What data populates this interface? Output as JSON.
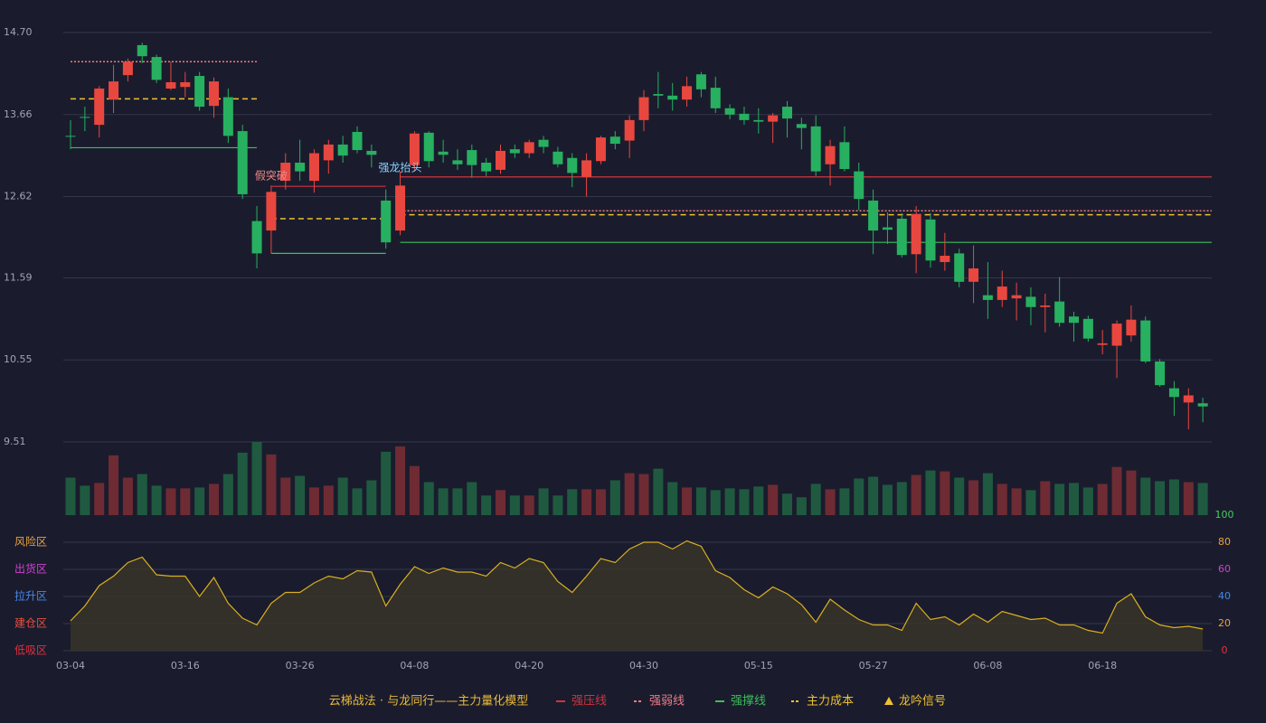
{
  "chart_data": {
    "type": "candlestick",
    "categories": [
      "03-04",
      null,
      null,
      null,
      null,
      null,
      null,
      null,
      "03-16",
      null,
      null,
      null,
      null,
      null,
      null,
      null,
      "03-26",
      null,
      null,
      null,
      null,
      null,
      null,
      null,
      "04-08",
      null,
      null,
      null,
      null,
      null,
      null,
      null,
      "04-20",
      null,
      null,
      null,
      null,
      null,
      null,
      null,
      "04-30",
      null,
      null,
      null,
      null,
      null,
      null,
      null,
      "05-15",
      null,
      null,
      null,
      null,
      null,
      null,
      null,
      "05-27",
      null,
      null,
      null,
      null,
      null,
      null,
      null,
      "06-08",
      null,
      null,
      null,
      null,
      null,
      null,
      null,
      "06-18",
      null,
      null,
      null,
      null,
      null,
      null,
      null
    ],
    "ohlc": [
      [
        13.39,
        13.59,
        13.22,
        13.38
      ],
      [
        13.63,
        13.76,
        13.45,
        13.62
      ],
      [
        13.53,
        14.02,
        13.37,
        13.99
      ],
      [
        13.85,
        14.29,
        13.68,
        14.08
      ],
      [
        14.16,
        14.37,
        14.08,
        14.33
      ],
      [
        14.54,
        14.57,
        14.31,
        14.4
      ],
      [
        14.39,
        14.42,
        14.06,
        14.1
      ],
      [
        13.99,
        14.33,
        13.97,
        14.07
      ],
      [
        14.01,
        14.2,
        13.88,
        14.07
      ],
      [
        14.15,
        14.2,
        13.71,
        13.76
      ],
      [
        13.77,
        14.13,
        13.62,
        14.08
      ],
      [
        13.88,
        13.99,
        13.3,
        13.39
      ],
      [
        13.45,
        13.53,
        12.59,
        12.65
      ],
      [
        12.31,
        12.5,
        11.71,
        11.9
      ],
      [
        12.19,
        12.76,
        11.9,
        12.68
      ],
      [
        12.82,
        13.17,
        12.71,
        13.05
      ],
      [
        13.05,
        13.34,
        12.82,
        12.94
      ],
      [
        12.82,
        13.22,
        12.67,
        13.17
      ],
      [
        13.08,
        13.34,
        12.91,
        13.28
      ],
      [
        13.28,
        13.39,
        13.05,
        13.14
      ],
      [
        13.44,
        13.51,
        13.17,
        13.21
      ],
      [
        13.2,
        13.28,
        12.99,
        13.15
      ],
      [
        12.57,
        12.71,
        11.96,
        12.04
      ],
      [
        12.19,
        12.94,
        12.13,
        12.76
      ],
      [
        13.02,
        13.45,
        12.94,
        13.42
      ],
      [
        13.43,
        13.45,
        12.99,
        13.07
      ],
      [
        13.19,
        13.34,
        13.05,
        13.15
      ],
      [
        13.08,
        13.22,
        12.96,
        13.03
      ],
      [
        13.21,
        13.28,
        12.86,
        13.02
      ],
      [
        13.05,
        13.11,
        12.88,
        12.94
      ],
      [
        12.96,
        13.28,
        12.91,
        13.2
      ],
      [
        13.22,
        13.28,
        13.11,
        13.17
      ],
      [
        13.17,
        13.34,
        13.11,
        13.31
      ],
      [
        13.34,
        13.39,
        13.17,
        13.25
      ],
      [
        13.19,
        13.25,
        12.99,
        13.03
      ],
      [
        13.11,
        13.17,
        12.74,
        12.92
      ],
      [
        12.87,
        13.17,
        12.62,
        13.08
      ],
      [
        13.07,
        13.39,
        13.03,
        13.37
      ],
      [
        13.38,
        13.45,
        13.22,
        13.29
      ],
      [
        13.33,
        13.65,
        13.11,
        13.59
      ],
      [
        13.59,
        13.97,
        13.45,
        13.88
      ],
      [
        13.92,
        14.2,
        13.74,
        13.9
      ],
      [
        13.9,
        14.06,
        13.71,
        13.85
      ],
      [
        13.85,
        14.14,
        13.76,
        14.02
      ],
      [
        14.17,
        14.2,
        13.88,
        13.98
      ],
      [
        14.0,
        14.14,
        13.68,
        13.74
      ],
      [
        13.74,
        13.79,
        13.6,
        13.66
      ],
      [
        13.67,
        13.76,
        13.53,
        13.59
      ],
      [
        13.59,
        13.74,
        13.42,
        13.57
      ],
      [
        13.57,
        13.68,
        13.3,
        13.65
      ],
      [
        13.76,
        13.83,
        13.37,
        13.61
      ],
      [
        13.54,
        13.62,
        13.22,
        13.49
      ],
      [
        13.51,
        13.65,
        12.88,
        12.94
      ],
      [
        13.03,
        13.34,
        12.76,
        13.26
      ],
      [
        13.31,
        13.51,
        12.94,
        12.97
      ],
      [
        12.94,
        13.05,
        12.45,
        12.59
      ],
      [
        12.57,
        12.71,
        11.89,
        12.19
      ],
      [
        12.23,
        12.42,
        12.02,
        12.2
      ],
      [
        12.34,
        12.41,
        11.85,
        11.88
      ],
      [
        11.89,
        12.5,
        11.65,
        12.4
      ],
      [
        12.33,
        12.41,
        11.72,
        11.81
      ],
      [
        11.79,
        12.16,
        11.68,
        11.87
      ],
      [
        11.9,
        11.96,
        11.47,
        11.54
      ],
      [
        11.54,
        12.0,
        11.27,
        11.71
      ],
      [
        11.37,
        11.79,
        11.07,
        11.31
      ],
      [
        11.31,
        11.68,
        11.22,
        11.48
      ],
      [
        11.33,
        11.53,
        11.05,
        11.37
      ],
      [
        11.35,
        11.47,
        10.99,
        11.22
      ],
      [
        11.22,
        11.39,
        10.9,
        11.24
      ],
      [
        11.29,
        11.6,
        10.97,
        11.02
      ],
      [
        11.1,
        11.16,
        10.78,
        11.02
      ],
      [
        11.07,
        11.11,
        10.78,
        10.82
      ],
      [
        10.74,
        10.93,
        10.62,
        10.76
      ],
      [
        10.73,
        11.05,
        10.32,
        11.01
      ],
      [
        10.86,
        11.24,
        10.78,
        11.06
      ],
      [
        11.05,
        11.1,
        10.51,
        10.53
      ],
      [
        10.53,
        10.56,
        10.21,
        10.23
      ],
      [
        10.19,
        10.28,
        9.84,
        10.08
      ],
      [
        10.01,
        10.19,
        9.67,
        10.1
      ],
      [
        10.0,
        10.07,
        9.76,
        9.96
      ]
    ],
    "ylim": [
      9.51,
      14.7
    ],
    "yticks": [
      {
        "value": 14.7,
        "label": "14.70"
      },
      13.66,
      12.62,
      11.59,
      10.55,
      9.51
    ],
    "up_color": "#e8473f",
    "down_color": "#27b060",
    "volume_up_color": "#6e2b33",
    "volume_down_color": "#1f5a40",
    "volumes": [
      42,
      33,
      36,
      67,
      42,
      46,
      33,
      30,
      30,
      31,
      35,
      46,
      70,
      82,
      68,
      42,
      44,
      31,
      33,
      42,
      30,
      39,
      71,
      77,
      55,
      37,
      30,
      30,
      37,
      22,
      28,
      22,
      22,
      30,
      22,
      29,
      29,
      29,
      39,
      47,
      46,
      52,
      37,
      31,
      31,
      28,
      30,
      29,
      32,
      34,
      24,
      20,
      35,
      29,
      30,
      41,
      43,
      34,
      37,
      45,
      50,
      49,
      42,
      39,
      47,
      35,
      30,
      28,
      38,
      35,
      36,
      31,
      35,
      54,
      50,
      42,
      38,
      40,
      37,
      36
    ],
    "volume_ylim": [
      0,
      82
    ],
    "lines": [
      {
        "name": "强压线",
        "color": "#d0343e",
        "dash": false,
        "segments": [
          {
            "from": 14,
            "to": 22,
            "value": 12.75
          },
          {
            "from": 23,
            "to": 79,
            "value": 12.87
          }
        ]
      },
      {
        "name": "强弱线",
        "color": "#f07a86",
        "dash": true,
        "segments": [
          {
            "from": 0,
            "to": 13,
            "value": 14.33
          },
          {
            "from": 23,
            "to": 79,
            "value": 12.44
          }
        ]
      },
      {
        "name": "强撑线",
        "color": "#3cbf5a",
        "dash": false,
        "segments": [
          {
            "from": 0,
            "to": 13,
            "value": 13.24
          },
          {
            "from": 14,
            "to": 22,
            "value": 11.9
          },
          {
            "from": 23,
            "to": 79,
            "value": 12.04
          }
        ]
      },
      {
        "name": "主力成本",
        "color": "#f0c030",
        "dash": true,
        "segments": [
          {
            "from": 0,
            "to": 13,
            "value": 13.86
          },
          {
            "from": 14,
            "to": 22,
            "value": 12.34
          },
          {
            "from": 23,
            "to": 79,
            "value": 12.39
          }
        ]
      }
    ],
    "signal": {
      "name": "龙吟信号",
      "color": "#f0c030"
    },
    "annotations": [
      {
        "text": "假突破",
        "index": 14,
        "value": 12.88,
        "color": "#f08a8a"
      },
      {
        "text": "强龙抬头",
        "index": 23,
        "value": 12.98,
        "color": "#8ad0ff"
      }
    ],
    "legend_title": "云梯战法 · 与龙同行——主力量化模型",
    "indicator": {
      "values": [
        22,
        33,
        48,
        55,
        65,
        69,
        56,
        55,
        55,
        40,
        54,
        35,
        24,
        19,
        35,
        43,
        43,
        50,
        55,
        53,
        59,
        58,
        33,
        49,
        62,
        57,
        61,
        58,
        58,
        55,
        65,
        61,
        68,
        65,
        51,
        43,
        55,
        68,
        65,
        75,
        80,
        80,
        75,
        81,
        77,
        59,
        54,
        45,
        39,
        47,
        42,
        34,
        21,
        38,
        30,
        23,
        19,
        19,
        15,
        35,
        23,
        25,
        19,
        27,
        21,
        29,
        26,
        23,
        24,
        19,
        19,
        15,
        13,
        35,
        42,
        25,
        19,
        17,
        18,
        16
      ],
      "color": "#d8b020",
      "ylim": [
        0,
        100
      ],
      "yticks": [
        100,
        80,
        60,
        40,
        20,
        0
      ],
      "ytick_colors": [
        "#40d060",
        "#e8a040",
        "#d040d0",
        "#4a86e8",
        "#e8a040",
        "#e83040"
      ],
      "zones": [
        {
          "label": "风险区",
          "value": 80,
          "color": "#e8a040"
        },
        {
          "label": "出货区",
          "value": 60,
          "color": "#d040d0"
        },
        {
          "label": "拉升区",
          "value": 40,
          "color": "#4a86e8"
        },
        {
          "label": "建仓区",
          "value": 20,
          "color": "#e85040"
        },
        {
          "label": "低吸区",
          "value": 0,
          "color": "#e03040"
        }
      ]
    }
  }
}
